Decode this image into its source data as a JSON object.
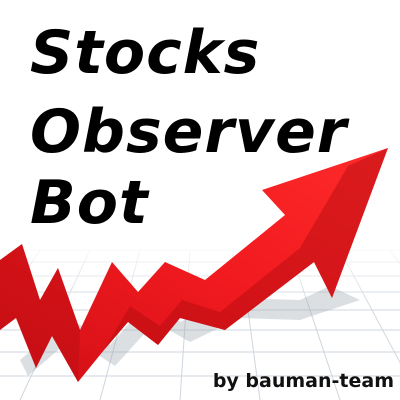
{
  "logo": {
    "title_lines": [
      "Stocks",
      "Observer",
      "Bot"
    ],
    "credit": "by bauman-team",
    "colors": {
      "arrow": "#e8141a",
      "arrow_dark": "#b00c10",
      "grid": "#cfd6de",
      "text": "#000000"
    }
  }
}
